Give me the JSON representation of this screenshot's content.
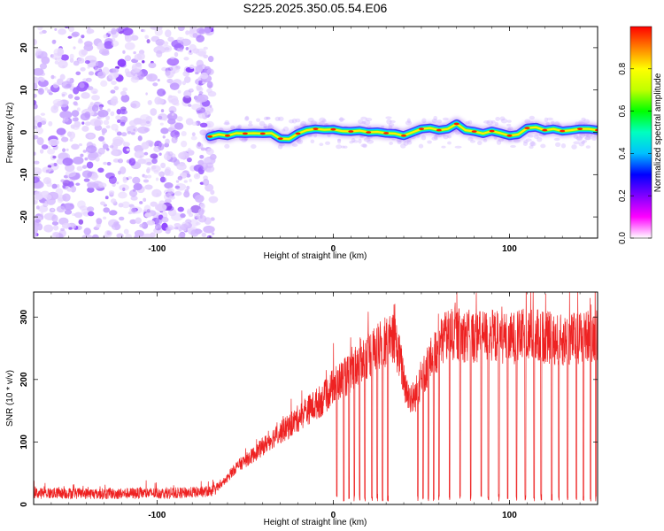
{
  "figure": {
    "title": "S225.2025.350.05.54.E06"
  },
  "colorbar": {
    "label": "Normalized spectral amplitude",
    "range": [
      0,
      1
    ],
    "ticks": [
      "0.0",
      "0.2",
      "0.4",
      "0.6",
      "0.8"
    ],
    "tick_values": [
      0,
      0.2,
      0.4,
      0.6,
      0.8
    ],
    "colors": [
      "#ffffff",
      "#ff00ff",
      "#8000ff",
      "#0000ff",
      "#00c0ff",
      "#00ffc0",
      "#00ff00",
      "#c0ff00",
      "#ffff00",
      "#ff8000",
      "#ff0000"
    ]
  },
  "chart_data": [
    {
      "type": "heatmap",
      "title": "S225.2025.350.05.54.E06",
      "xlabel": "Height of straight line (km)",
      "ylabel": "Frequency (Hz)",
      "xlim": [
        -170,
        150
      ],
      "ylim": [
        -25,
        25
      ],
      "x_ticks": [
        -100,
        0,
        100
      ],
      "x_tick_labels": [
        "-100",
        "0",
        "100"
      ],
      "y_ticks": [
        -20,
        -10,
        0,
        10,
        20
      ],
      "y_tick_labels": [
        "-20",
        "-10",
        "0",
        "10",
        "20"
      ],
      "noise_region_x": [
        -170,
        -70
      ],
      "ridge_color": "#00d0ff",
      "ridge": [
        {
          "x": -70,
          "y": -1.0
        },
        {
          "x": -65,
          "y": -0.5
        },
        {
          "x": -60,
          "y": -0.8
        },
        {
          "x": -55,
          "y": -0.2
        },
        {
          "x": -50,
          "y": -0.3
        },
        {
          "x": -45,
          "y": -0.2
        },
        {
          "x": -40,
          "y": -0.3
        },
        {
          "x": -35,
          "y": -0.2
        },
        {
          "x": -30,
          "y": -1.5
        },
        {
          "x": -25,
          "y": -1.6
        },
        {
          "x": -20,
          "y": -0.3
        },
        {
          "x": -15,
          "y": 0.5
        },
        {
          "x": -10,
          "y": 0.8
        },
        {
          "x": -5,
          "y": 0.6
        },
        {
          "x": 0,
          "y": 0.7
        },
        {
          "x": 5,
          "y": 0.3
        },
        {
          "x": 10,
          "y": 0.2
        },
        {
          "x": 15,
          "y": 0.4
        },
        {
          "x": 20,
          "y": 0.0
        },
        {
          "x": 25,
          "y": 0.1
        },
        {
          "x": 30,
          "y": -0.2
        },
        {
          "x": 35,
          "y": -0.3
        },
        {
          "x": 40,
          "y": -0.8
        },
        {
          "x": 45,
          "y": 0.0
        },
        {
          "x": 50,
          "y": 0.8
        },
        {
          "x": 55,
          "y": 1.0
        },
        {
          "x": 60,
          "y": 0.5
        },
        {
          "x": 65,
          "y": 0.8
        },
        {
          "x": 70,
          "y": 2.0
        },
        {
          "x": 75,
          "y": 0.5
        },
        {
          "x": 80,
          "y": 0.2
        },
        {
          "x": 85,
          "y": -0.3
        },
        {
          "x": 90,
          "y": 0.3
        },
        {
          "x": 95,
          "y": -0.2
        },
        {
          "x": 100,
          "y": -0.8
        },
        {
          "x": 105,
          "y": -0.5
        },
        {
          "x": 110,
          "y": 1.0
        },
        {
          "x": 115,
          "y": 1.2
        },
        {
          "x": 120,
          "y": 0.5
        },
        {
          "x": 125,
          "y": 0.8
        },
        {
          "x": 130,
          "y": 0.3
        },
        {
          "x": 135,
          "y": 0.5
        },
        {
          "x": 140,
          "y": 0.8
        },
        {
          "x": 145,
          "y": 0.8
        },
        {
          "x": 150,
          "y": 0.5
        }
      ]
    },
    {
      "type": "line",
      "xlabel": "Height of straight line (km)",
      "ylabel": "SNR (10 * v/v)",
      "xlim": [
        -170,
        150
      ],
      "ylim": [
        0,
        340
      ],
      "x_ticks": [
        -100,
        0,
        100
      ],
      "x_tick_labels": [
        "-100",
        "0",
        "100"
      ],
      "y_ticks": [
        0,
        100,
        200,
        300
      ],
      "y_tick_labels": [
        "0",
        "100",
        "200",
        "300"
      ],
      "line_color": "#ee2222",
      "series": [
        {
          "name": "SNR",
          "x": [
            -170,
            -150,
            -130,
            -110,
            -90,
            -75,
            -68,
            -62,
            -55,
            -45,
            -35,
            -25,
            -15,
            -5,
            0,
            5,
            10,
            15,
            20,
            25,
            30,
            35,
            38,
            42,
            46,
            50,
            55,
            60,
            65,
            70,
            80,
            90,
            100,
            110,
            120,
            130,
            140,
            150
          ],
          "values": [
            18,
            18,
            17,
            18,
            18,
            20,
            22,
            35,
            60,
            80,
            105,
            125,
            150,
            170,
            190,
            200,
            210,
            230,
            240,
            250,
            260,
            265,
            230,
            175,
            170,
            200,
            230,
            255,
            270,
            272,
            268,
            270,
            265,
            272,
            268,
            262,
            268,
            272
          ]
        }
      ],
      "dropouts_x": [
        2,
        6,
        9,
        12,
        15,
        18,
        22,
        25,
        28,
        31,
        48,
        51,
        54,
        57,
        60,
        66,
        72,
        78,
        84,
        88,
        94,
        99,
        104,
        109,
        114,
        118,
        124,
        128,
        133,
        138,
        142,
        146,
        149
      ]
    }
  ]
}
